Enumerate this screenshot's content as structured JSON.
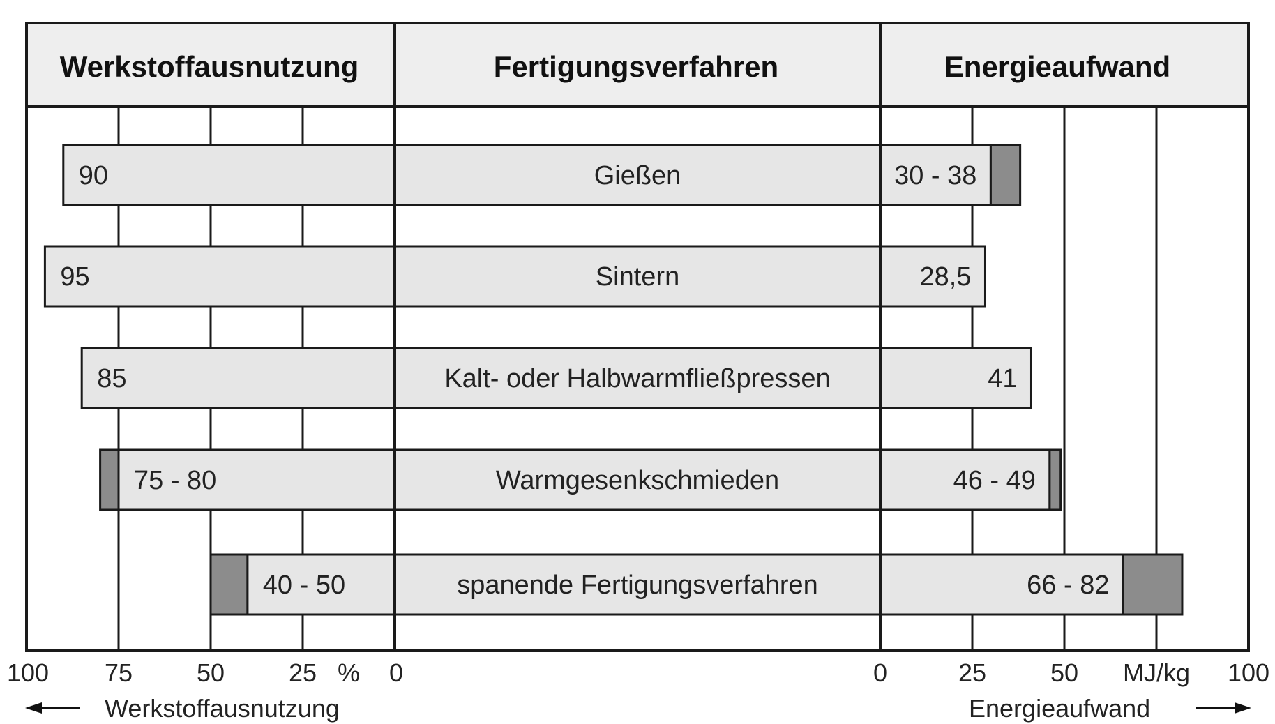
{
  "chart_data": {
    "type": "bar",
    "columns": {
      "left": "Werkstoffausnutzung",
      "center": "Fertigungsverfahren",
      "right": "Energieaufwand"
    },
    "categories": [
      "Gießen",
      "Sintern",
      "Kalt- oder Halbwarmfließpressen",
      "Warmgesenkschmieden",
      "spanende Fertigungsverfahren"
    ],
    "series": [
      {
        "name": "Werkstoffausnutzung",
        "unit": "%",
        "ranges": [
          [
            90,
            90
          ],
          [
            95,
            95
          ],
          [
            85,
            85
          ],
          [
            75,
            80
          ],
          [
            40,
            50
          ]
        ],
        "labels": [
          "90",
          "95",
          "85",
          "75 - 80",
          "40 - 50"
        ]
      },
      {
        "name": "Energieaufwand",
        "unit": "MJ/kg",
        "ranges": [
          [
            30,
            38
          ],
          [
            28.5,
            28.5
          ],
          [
            41,
            41
          ],
          [
            46,
            49
          ],
          [
            66,
            82
          ]
        ],
        "labels": [
          "30 - 38",
          "28,5",
          "41",
          "46 - 49",
          "66 - 82"
        ]
      }
    ],
    "left_axis": {
      "ticks": [
        "100",
        "75",
        "50",
        "25",
        "0"
      ],
      "tick_values": [
        100,
        75,
        50,
        25,
        0
      ],
      "unit": "%",
      "label": "Werkstoffausnutzung",
      "range": [
        100,
        0
      ]
    },
    "right_axis": {
      "ticks": [
        "0",
        "25",
        "50",
        "100"
      ],
      "tick_values": [
        0,
        25,
        50,
        100
      ],
      "unit": "MJ/kg",
      "label": "Energieaufwand",
      "range": [
        0,
        100
      ]
    },
    "grid": true,
    "colors": {
      "bar_fill": "#e6e6e6",
      "range_fill": "#8c8c8c",
      "header_fill": "#eeeeee",
      "stroke": "#1a1a1a"
    }
  }
}
